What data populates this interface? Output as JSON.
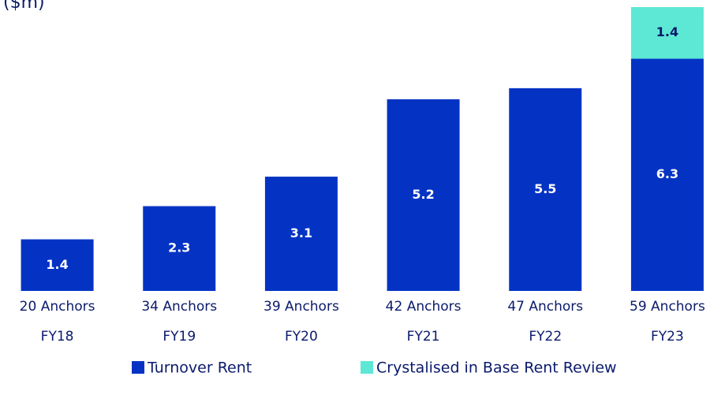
{
  "chart_data": {
    "type": "stacked_bar",
    "title": "($m)",
    "categories": [
      "FY18",
      "FY19",
      "FY20",
      "FY21",
      "FY22",
      "FY23"
    ],
    "anchor_labels": [
      "20 Anchors",
      "34 Anchors",
      "39 Anchors",
      "42 Anchors",
      "47 Anchors",
      "59 Anchors"
    ],
    "series": [
      {
        "name": "Turnover Rent",
        "color": "#0433c4",
        "values": [
          1.4,
          2.3,
          3.1,
          5.2,
          5.5,
          6.3
        ]
      },
      {
        "name": "Crystalised in Base Rent Review",
        "color": "#5ce8d4",
        "values": [
          null,
          null,
          null,
          null,
          null,
          1.4
        ]
      }
    ]
  }
}
